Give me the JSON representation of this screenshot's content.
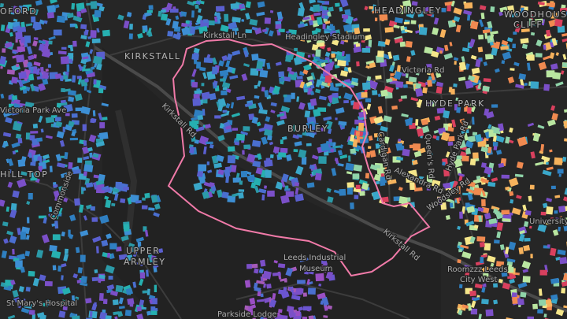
{
  "labels": [
    "OFORD",
    "HEADINGLEY",
    "WOODHOUSE",
    "CLIFF",
    "KIRKSTALL",
    "Kirkstall Ln",
    "Headingley Stadium",
    "Victoria Rd",
    "HYDE PARK",
    "Victoria Park Ave",
    "BURLEY",
    "HILL TOP",
    "Kirkstall Rd",
    "Cardigan Rd",
    "Queen's Rd",
    "Hyde Park Rd",
    "Alexandra Rd",
    "Woodsley Rd",
    "University",
    "UPPER",
    "ARMLEY",
    "Leeds Industrial",
    "Museum",
    "Kirkstall Rd",
    "Roomzzz Leeds",
    "City West",
    "St Mary's Hospital",
    "Parkside Lodge",
    "Commonside"
  ]
}
